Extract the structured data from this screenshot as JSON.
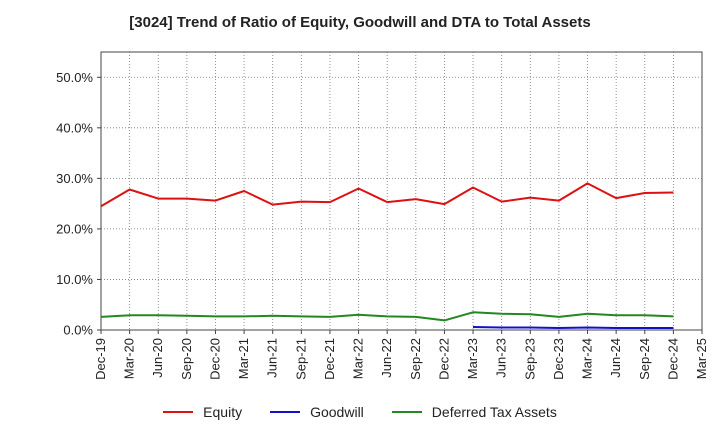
{
  "chart_data": {
    "type": "line",
    "title": "[3024]  Trend of Ratio of Equity, Goodwill and DTA to Total Assets",
    "xlabel": "",
    "ylabel": "",
    "ylim": [
      0,
      55
    ],
    "yticks": [
      "0.0%",
      "10.0%",
      "20.0%",
      "30.0%",
      "40.0%",
      "50.0%"
    ],
    "ytick_values": [
      0,
      10,
      20,
      30,
      40,
      50
    ],
    "x": [
      "Dec-19",
      "Mar-20",
      "Jun-20",
      "Sep-20",
      "Dec-20",
      "Mar-21",
      "Jun-21",
      "Sep-21",
      "Dec-21",
      "Mar-22",
      "Jun-22",
      "Sep-22",
      "Dec-22",
      "Mar-23",
      "Jun-23",
      "Sep-23",
      "Dec-23",
      "Mar-24",
      "Jun-24",
      "Sep-24",
      "Dec-24",
      "Mar-25"
    ],
    "grid": true,
    "legend_position": "bottom",
    "series": [
      {
        "name": "Equity",
        "color": "#dd1111",
        "values": [
          24.5,
          27.8,
          26.0,
          26.0,
          25.6,
          27.5,
          24.8,
          25.4,
          25.3,
          28.0,
          25.3,
          25.9,
          24.9,
          28.2,
          25.4,
          26.2,
          25.6,
          29.0,
          26.1,
          27.1,
          27.2,
          null
        ]
      },
      {
        "name": "Goodwill",
        "color": "#1111cc",
        "values": [
          null,
          null,
          null,
          null,
          null,
          null,
          null,
          null,
          null,
          null,
          null,
          null,
          null,
          0.6,
          0.5,
          0.5,
          0.4,
          0.5,
          0.4,
          0.4,
          0.4,
          null
        ]
      },
      {
        "name": "Deferred Tax Assets",
        "color": "#228822",
        "values": [
          2.6,
          2.9,
          2.9,
          2.8,
          2.7,
          2.7,
          2.8,
          2.7,
          2.6,
          3.0,
          2.7,
          2.6,
          1.9,
          3.5,
          3.2,
          3.1,
          2.6,
          3.2,
          2.9,
          2.9,
          2.7,
          null
        ]
      }
    ]
  }
}
